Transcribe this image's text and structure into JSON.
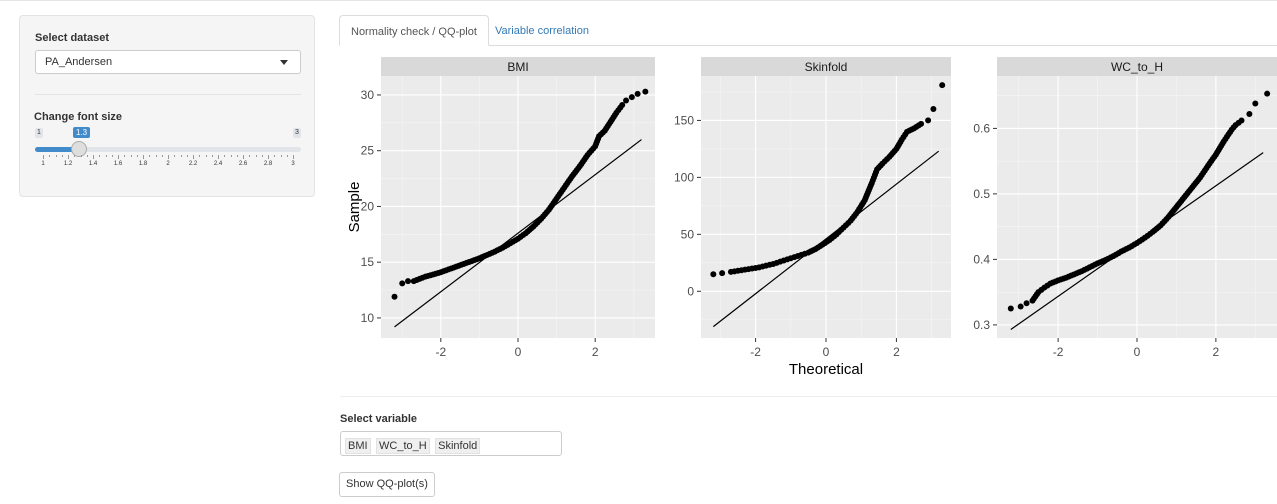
{
  "sidebar": {
    "dataset_label": "Select dataset",
    "dataset_value": "PA_Andersen",
    "font_label": "Change font size",
    "slider": {
      "min": "1",
      "max": "3",
      "value": "1.3",
      "ticks": [
        "1",
        "1.2",
        "1.4",
        "1.6",
        "1.8",
        "2",
        "2.2",
        "2.4",
        "2.6",
        "2.8",
        "3"
      ]
    }
  },
  "tabs": [
    {
      "label": "Normality check / QQ-plot",
      "active": true
    },
    {
      "label": "Variable correlation",
      "active": false
    }
  ],
  "chart_data": {
    "type": "scatter",
    "xlabel": "Theoretical",
    "ylabel": "Sample",
    "panels": [
      {
        "title": "BMI",
        "xticks": [
          -2,
          0,
          2
        ],
        "yticks": [
          10,
          15,
          20,
          25,
          30
        ],
        "xlim": [
          -3.55,
          3.55
        ],
        "ylim": [
          8.2,
          31.7
        ],
        "line": [
          [
            -3.2,
            9.2
          ],
          [
            3.2,
            26.0
          ]
        ],
        "points": [
          [
            -3.2,
            11.9
          ],
          [
            -3.0,
            13.1
          ],
          [
            -2.85,
            13.3
          ],
          [
            -2.7,
            13.3
          ],
          [
            -2.55,
            13.5
          ],
          [
            -2.4,
            13.7
          ],
          [
            -2.2,
            13.9
          ],
          [
            -2.0,
            14.1
          ],
          [
            -1.8,
            14.35
          ],
          [
            -1.6,
            14.6
          ],
          [
            -1.4,
            14.85
          ],
          [
            -1.2,
            15.1
          ],
          [
            -1.0,
            15.35
          ],
          [
            -0.8,
            15.65
          ],
          [
            -0.6,
            15.95
          ],
          [
            -0.4,
            16.3
          ],
          [
            -0.2,
            16.7
          ],
          [
            0.0,
            17.1
          ],
          [
            0.2,
            17.6
          ],
          [
            0.4,
            18.2
          ],
          [
            0.6,
            18.9
          ],
          [
            0.8,
            19.7
          ],
          [
            1.0,
            20.7
          ],
          [
            1.2,
            21.7
          ],
          [
            1.4,
            22.7
          ],
          [
            1.6,
            23.6
          ],
          [
            1.8,
            24.6
          ],
          [
            2.0,
            25.4
          ],
          [
            2.1,
            26.3
          ],
          [
            2.25,
            26.8
          ],
          [
            2.4,
            27.6
          ],
          [
            2.55,
            28.4
          ],
          [
            2.7,
            29.1
          ],
          [
            2.8,
            29.5
          ],
          [
            2.95,
            29.8
          ],
          [
            3.1,
            30.1
          ],
          [
            3.3,
            30.3
          ]
        ]
      },
      {
        "title": "Skinfold",
        "xticks": [
          -2,
          0,
          2
        ],
        "yticks": [
          0,
          50,
          100,
          150
        ],
        "xlim": [
          -3.55,
          3.55
        ],
        "ylim": [
          -41,
          189
        ],
        "line": [
          [
            -3.2,
            -31
          ],
          [
            3.2,
            123
          ]
        ],
        "points": [
          [
            -3.2,
            15
          ],
          [
            -2.95,
            16
          ],
          [
            -2.7,
            17
          ],
          [
            -2.5,
            18
          ],
          [
            -2.3,
            19
          ],
          [
            -2.1,
            20
          ],
          [
            -1.9,
            21
          ],
          [
            -1.7,
            22.5
          ],
          [
            -1.5,
            24
          ],
          [
            -1.3,
            26
          ],
          [
            -1.1,
            28
          ],
          [
            -0.9,
            30
          ],
          [
            -0.7,
            32
          ],
          [
            -0.5,
            34
          ],
          [
            -0.3,
            37
          ],
          [
            -0.1,
            41
          ],
          [
            0.1,
            45
          ],
          [
            0.3,
            50
          ],
          [
            0.5,
            56
          ],
          [
            0.7,
            62
          ],
          [
            0.9,
            70
          ],
          [
            1.1,
            80
          ],
          [
            1.3,
            95
          ],
          [
            1.45,
            107
          ],
          [
            1.6,
            112
          ],
          [
            1.8,
            118
          ],
          [
            2.0,
            125
          ],
          [
            2.15,
            133
          ],
          [
            2.3,
            140
          ],
          [
            2.5,
            143
          ],
          [
            2.7,
            147
          ],
          [
            2.9,
            150
          ],
          [
            3.05,
            160
          ],
          [
            3.3,
            181
          ]
        ]
      },
      {
        "title": "WC_to_H",
        "xticks": [
          -2,
          0,
          2
        ],
        "yticks": [
          0.3,
          0.4,
          0.5,
          0.6
        ],
        "xlim": [
          -3.55,
          3.55
        ],
        "ylim": [
          0.28,
          0.68
        ],
        "line": [
          [
            -3.2,
            0.293
          ],
          [
            3.2,
            0.563
          ]
        ],
        "points": [
          [
            -3.2,
            0.325
          ],
          [
            -2.95,
            0.328
          ],
          [
            -2.8,
            0.333
          ],
          [
            -2.65,
            0.337
          ],
          [
            -2.5,
            0.35
          ],
          [
            -2.35,
            0.357
          ],
          [
            -2.2,
            0.363
          ],
          [
            -2.0,
            0.368
          ],
          [
            -1.8,
            0.372
          ],
          [
            -1.6,
            0.377
          ],
          [
            -1.4,
            0.382
          ],
          [
            -1.2,
            0.388
          ],
          [
            -1.0,
            0.394
          ],
          [
            -0.8,
            0.399
          ],
          [
            -0.6,
            0.405
          ],
          [
            -0.4,
            0.412
          ],
          [
            -0.2,
            0.418
          ],
          [
            0.0,
            0.425
          ],
          [
            0.2,
            0.433
          ],
          [
            0.4,
            0.442
          ],
          [
            0.6,
            0.452
          ],
          [
            0.8,
            0.465
          ],
          [
            1.0,
            0.48
          ],
          [
            1.2,
            0.495
          ],
          [
            1.4,
            0.51
          ],
          [
            1.6,
            0.525
          ],
          [
            1.8,
            0.543
          ],
          [
            2.0,
            0.56
          ],
          [
            2.2,
            0.58
          ],
          [
            2.4,
            0.598
          ],
          [
            2.5,
            0.605
          ],
          [
            2.65,
            0.612
          ],
          [
            2.85,
            0.622
          ],
          [
            3.0,
            0.638
          ],
          [
            3.3,
            0.653
          ]
        ]
      }
    ]
  },
  "main": {
    "select_variable_label": "Select variable",
    "selected_variables": [
      "BMI",
      "WC_to_H",
      "Skinfold"
    ],
    "button_label": "Show QQ-plot(s)"
  }
}
